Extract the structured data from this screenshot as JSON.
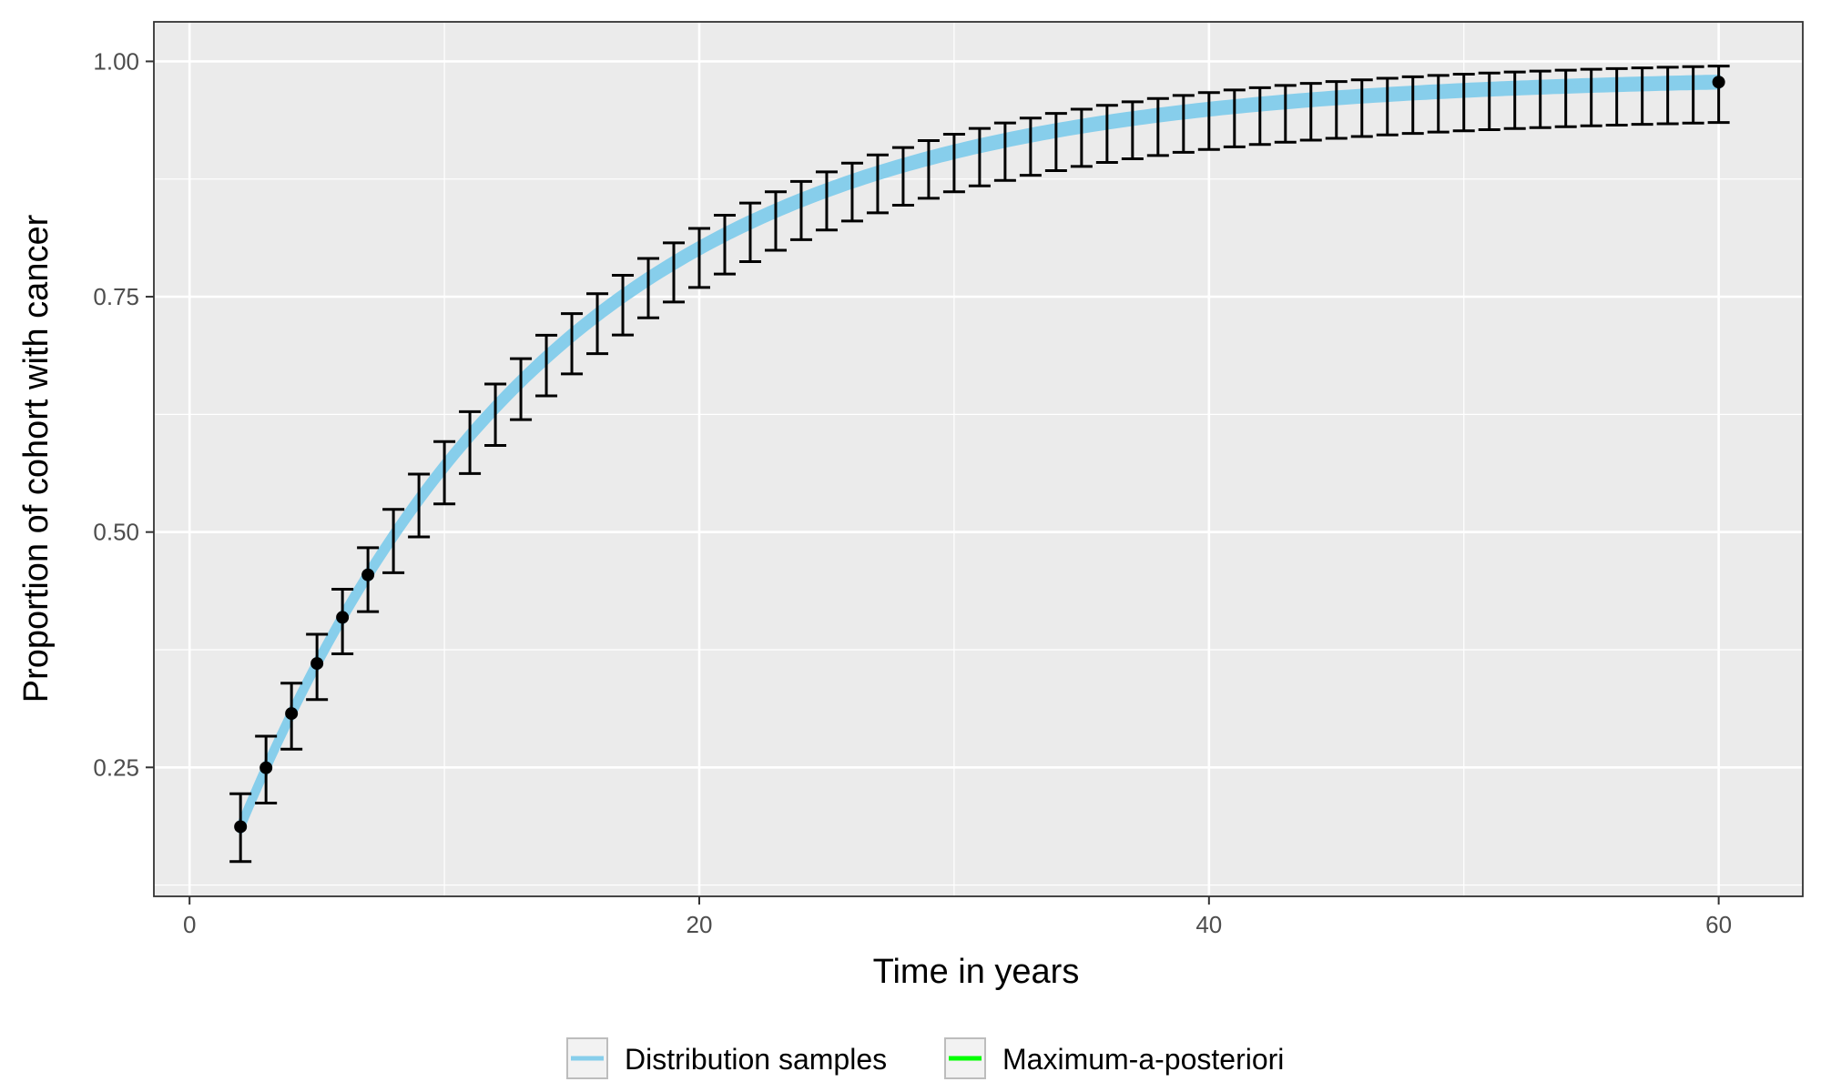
{
  "chart_data": {
    "type": "line",
    "title": "",
    "xlabel": "Time in years",
    "ylabel": "Proportion of cohort with cancer",
    "xlim": [
      -1.4,
      63.3
    ],
    "ylim": [
      0.113,
      1.042
    ],
    "x_ticks": [
      0,
      20,
      40,
      60
    ],
    "x_tick_labels": [
      "0",
      "20",
      "40",
      "60"
    ],
    "y_ticks": [
      0.25,
      0.5,
      0.75,
      1.0
    ],
    "y_tick_labels": [
      "0.25",
      "0.50",
      "0.75",
      "1.00"
    ],
    "grid": true,
    "legend_position": "bottom",
    "model": {
      "form": "exponential_saturation",
      "start_x": 2,
      "start_value": 0.187,
      "end_x": 60,
      "end_value": 0.978,
      "plateau": 0.985
    },
    "band_lower_at_start": 0.182,
    "band_upper_at_start": 0.192,
    "band_lower_at_end": 0.973,
    "band_upper_at_end": 0.983,
    "observed_points": {
      "x_start": 2,
      "x_end": 60,
      "step": 1,
      "marked_until_x": 7
    },
    "error_bar_lower_at_start": 0.15,
    "error_bar_upper_at_start": 0.222,
    "error_bar_lower_at_end": 0.935,
    "error_bar_upper_at_end": 0.995,
    "series": [
      {
        "name": "Distribution samples",
        "color": "#87ceeb"
      },
      {
        "name": "Maximum-a-posteriori",
        "color": "#00ff00"
      }
    ],
    "colors": {
      "panel": "#ebebeb",
      "grid": "#ffffff",
      "error_bars": "#000000",
      "points": "#000000"
    }
  }
}
